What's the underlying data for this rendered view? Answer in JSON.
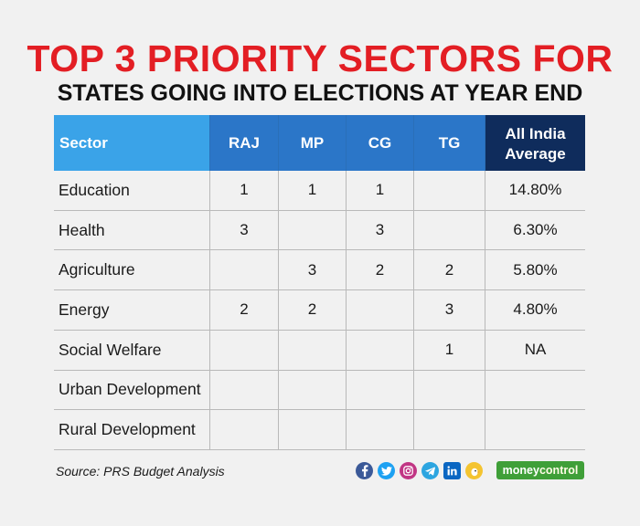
{
  "title": "TOP 3 PRIORITY SECTORS FOR",
  "subtitle": "STATES GOING INTO ELECTIONS AT YEAR END",
  "source": "Source: PRS Budget Analysis",
  "brand": {
    "part1": "money",
    "part2": "control"
  },
  "social_icons": [
    "facebook-icon",
    "twitter-icon",
    "instagram-icon",
    "telegram-icon",
    "linkedin-icon",
    "koo-icon"
  ],
  "colors": {
    "title_red": "#e31e24",
    "header_sector": "#3aa3e8",
    "header_state": "#2b76c8",
    "header_avg": "#0f2c5c",
    "brand_green": "#3f9f38"
  },
  "chart_data": {
    "type": "table",
    "columns": [
      "Sector",
      "RAJ",
      "MP",
      "CG",
      "TG",
      "All India Average"
    ],
    "rows": [
      [
        "Education",
        "1",
        "1",
        "1",
        "",
        "14.80%"
      ],
      [
        "Health",
        "3",
        "",
        "3",
        "",
        "6.30%"
      ],
      [
        "Agriculture",
        "",
        "3",
        "2",
        "2",
        "5.80%"
      ],
      [
        "Energy",
        "2",
        "2",
        "",
        "3",
        "4.80%"
      ],
      [
        "Social Welfare",
        "",
        "",
        "",
        "1",
        "NA"
      ],
      [
        "Urban Development",
        "",
        "",
        "",
        "",
        ""
      ],
      [
        "Rural Development",
        "",
        "",
        "",
        "",
        ""
      ]
    ]
  }
}
